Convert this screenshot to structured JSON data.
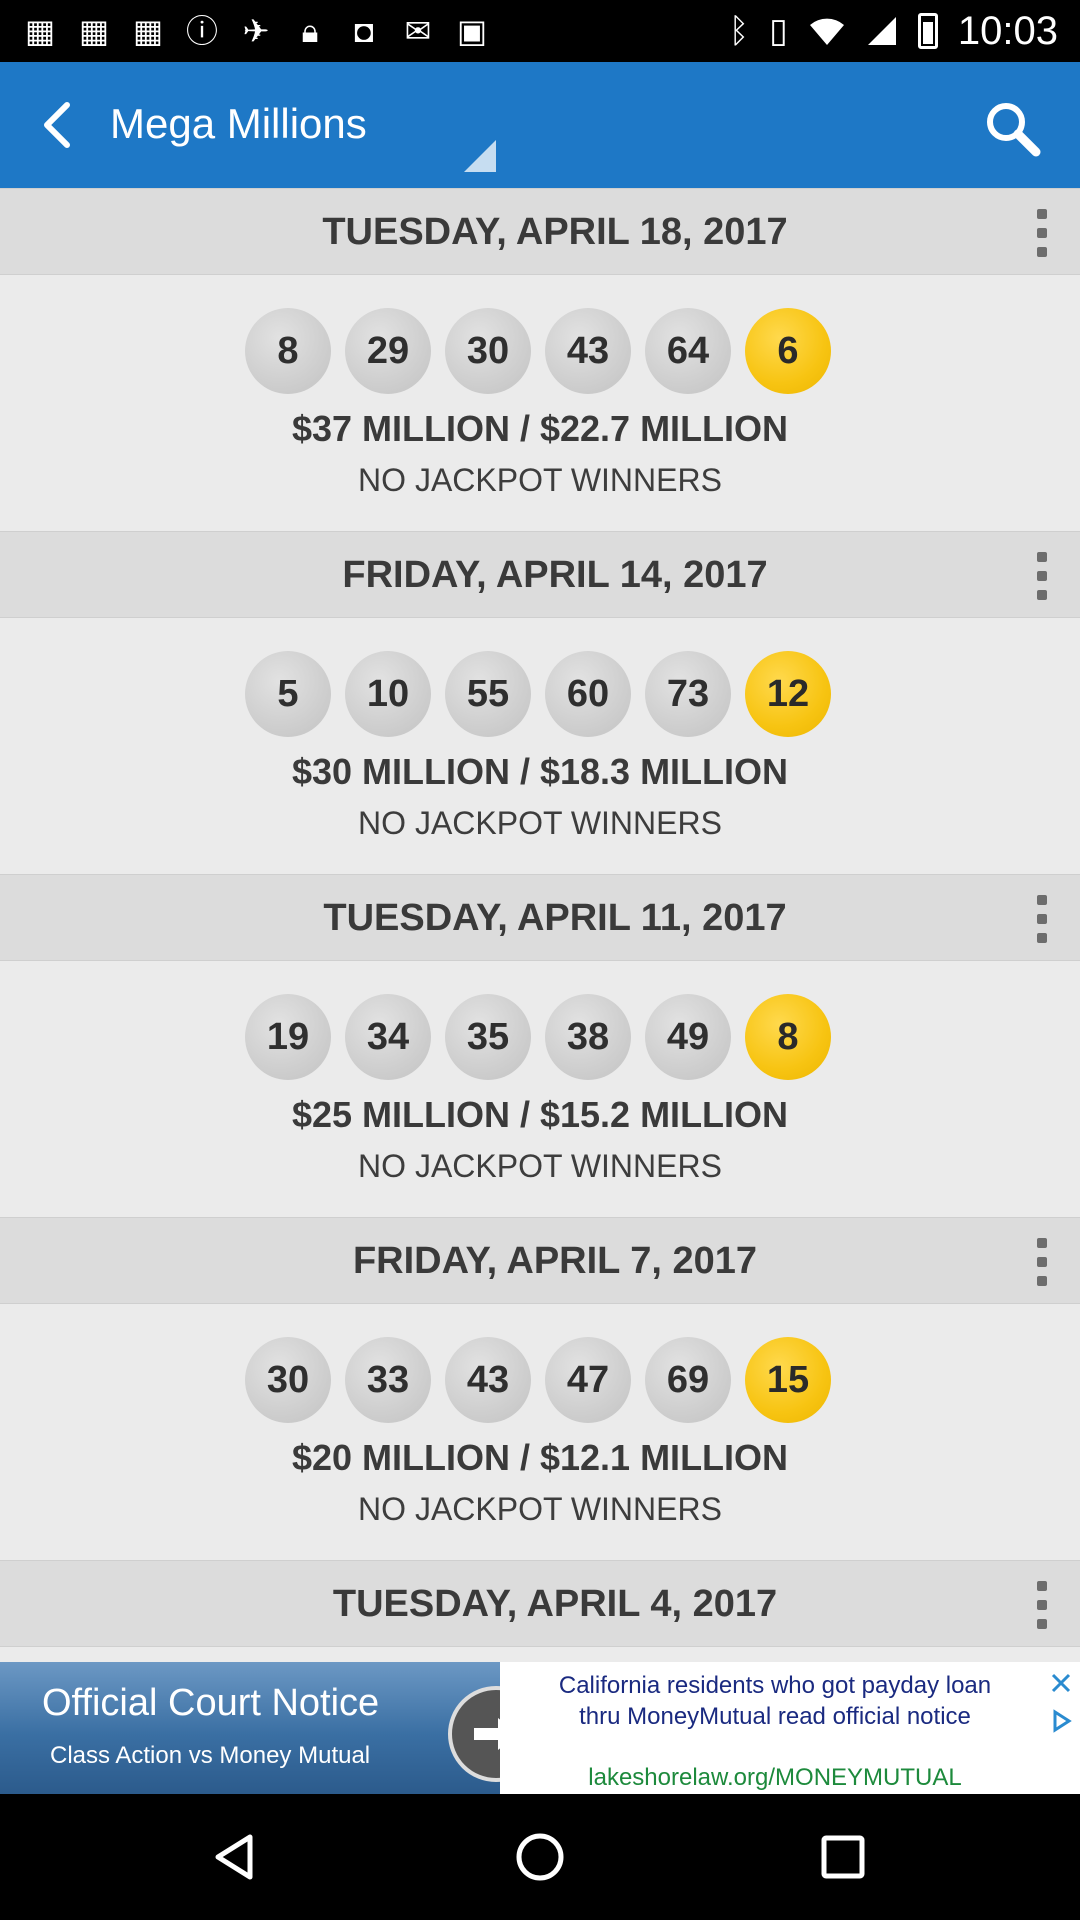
{
  "status_bar": {
    "time": "10:03",
    "left_icons": [
      "grid-icon",
      "grid-icon",
      "grid-icon",
      "info-icon",
      "gps-icon",
      "lock-icon",
      "bot-icon",
      "mail-icon",
      "bag-icon"
    ],
    "right_icons": [
      "bluetooth-icon",
      "vibrate-icon",
      "wifi-icon",
      "signal-icon",
      "battery-icon"
    ]
  },
  "app_bar": {
    "title": "Mega Millions",
    "background": "#1e78c6"
  },
  "draws": [
    {
      "date": "TUESDAY, APRIL 18, 2017",
      "numbers": [
        "8",
        "29",
        "30",
        "43",
        "64"
      ],
      "mega_ball": "6",
      "prize": "$37 MILLION / $22.7 MILLION",
      "winners": "NO JACKPOT WINNERS"
    },
    {
      "date": "FRIDAY, APRIL 14, 2017",
      "numbers": [
        "5",
        "10",
        "55",
        "60",
        "73"
      ],
      "mega_ball": "12",
      "prize": "$30 MILLION / $18.3 MILLION",
      "winners": "NO JACKPOT WINNERS"
    },
    {
      "date": "TUESDAY, APRIL 11, 2017",
      "numbers": [
        "19",
        "34",
        "35",
        "38",
        "49"
      ],
      "mega_ball": "8",
      "prize": "$25 MILLION / $15.2 MILLION",
      "winners": "NO JACKPOT WINNERS"
    },
    {
      "date": "FRIDAY, APRIL 7, 2017",
      "numbers": [
        "30",
        "33",
        "43",
        "47",
        "69"
      ],
      "mega_ball": "15",
      "prize": "$20 MILLION / $12.1 MILLION",
      "winners": "NO JACKPOT WINNERS"
    },
    {
      "date": "TUESDAY, APRIL 4, 2017"
    }
  ],
  "ad": {
    "title": "Official Court Notice",
    "subtitle": "Class Action vs Money Mutual",
    "message": "California residents who got payday loan thru MoneyMutual read official notice",
    "link": "lakeshorelaw.org/MONEYMUTUAL"
  },
  "colors": {
    "accent": "#1e78c6",
    "mega_ball": "#f7c412",
    "ball": "#d0d0d0",
    "header_bg": "#dcdcdc",
    "content_bg": "#ebebeb"
  }
}
